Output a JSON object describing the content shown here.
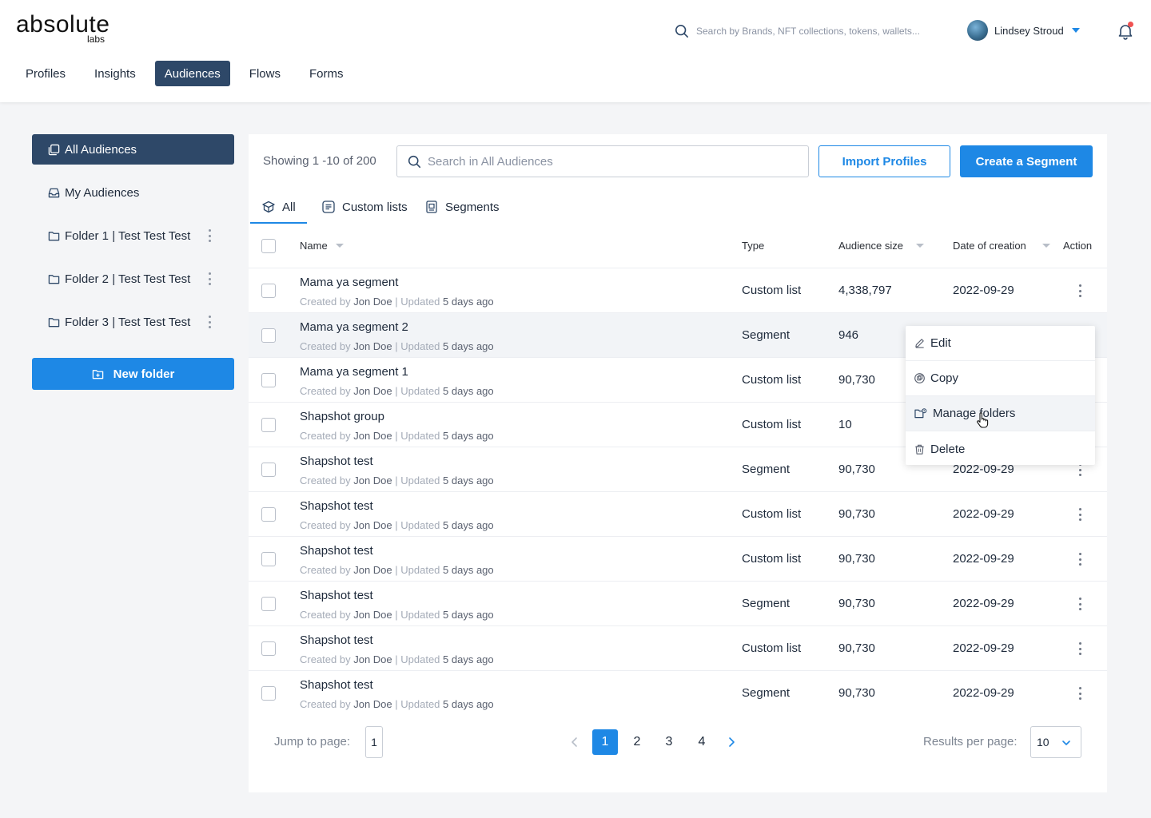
{
  "app": {
    "logo_main": "absolute",
    "logo_sub": "labs"
  },
  "header": {
    "search_placeholder": "Search by Brands, NFT collections, tokens, wallets...",
    "user_name": "Lindsey Stroud",
    "nav": [
      "Profiles",
      "Insights",
      "Audiences",
      "Flows",
      "Forms"
    ],
    "active_nav": "Audiences"
  },
  "sidebar": {
    "items": [
      {
        "label": "All Audiences",
        "icon": "layers-icon",
        "active": true
      },
      {
        "label": "My Audiences",
        "icon": "inbox-icon",
        "active": false
      },
      {
        "label": "Folder 1 | Test Test Test",
        "icon": "folder-icon",
        "active": false
      },
      {
        "label": "Folder 2 | Test Test Test",
        "icon": "folder-icon",
        "active": false
      },
      {
        "label": "Folder 3 | Test Test Test",
        "icon": "folder-icon",
        "active": false
      }
    ],
    "new_folder_label": "New folder"
  },
  "main": {
    "showing": "Showing 1 -10 of 200",
    "search_placeholder": "Search in All Audiences",
    "import_label": "Import Profiles",
    "create_label": "Create a Segment",
    "tabs": [
      "All",
      "Custom lists",
      "Segments"
    ],
    "columns": {
      "name": "Name",
      "type": "Type",
      "size": "Audience size",
      "date": "Date of creation",
      "action": "Action"
    },
    "meta": {
      "created_by": "Created by",
      "updated": "| Updated"
    },
    "rows": [
      {
        "name": "Mama ya segment",
        "author": "Jon Doe",
        "updated": "5 days ago",
        "type": "Custom list",
        "size": "4,338,797",
        "date": "2022-09-29"
      },
      {
        "name": "Mama ya segment 2",
        "author": "Jon Doe",
        "updated": "5 days ago",
        "type": "Segment",
        "size": "946",
        "date": ""
      },
      {
        "name": "Mama ya segment 1",
        "author": "Jon Doe",
        "updated": "5 days ago",
        "type": "Custom list",
        "size": "90,730",
        "date": ""
      },
      {
        "name": "Shapshot group",
        "author": "Jon Doe",
        "updated": "5 days ago",
        "type": "Custom list",
        "size": "10",
        "date": ""
      },
      {
        "name": "Shapshot  test",
        "author": "Jon Doe",
        "updated": "5 days ago",
        "type": "Segment",
        "size": "90,730",
        "date": "2022-09-29"
      },
      {
        "name": "Shapshot  test",
        "author": "Jon Doe",
        "updated": "5 days ago",
        "type": "Custom list",
        "size": "90,730",
        "date": "2022-09-29"
      },
      {
        "name": "Shapshot  test",
        "author": "Jon Doe",
        "updated": "5 days ago",
        "type": "Custom list",
        "size": "90,730",
        "date": "2022-09-29"
      },
      {
        "name": "Shapshot  test",
        "author": "Jon Doe",
        "updated": "5 days ago",
        "type": "Segment",
        "size": "90,730",
        "date": "2022-09-29"
      },
      {
        "name": "Shapshot  test",
        "author": "Jon Doe",
        "updated": "5 days ago",
        "type": "Custom list",
        "size": "90,730",
        "date": "2022-09-29"
      },
      {
        "name": "Shapshot  test",
        "author": "Jon Doe",
        "updated": "5 days ago",
        "type": "Segment",
        "size": "90,730",
        "date": "2022-09-29"
      }
    ],
    "context_menu": [
      "Edit",
      "Copy",
      "Manage folders",
      "Delete"
    ],
    "pagination": {
      "jump_label": "Jump to page:",
      "jump_value": "1",
      "pages": [
        "1",
        "2",
        "3",
        "4"
      ],
      "current": "1",
      "rpp_label": "Results per page:",
      "rpp_value": "10"
    }
  },
  "colors": {
    "brand": "#2e4868",
    "accent": "#1e88e5"
  }
}
